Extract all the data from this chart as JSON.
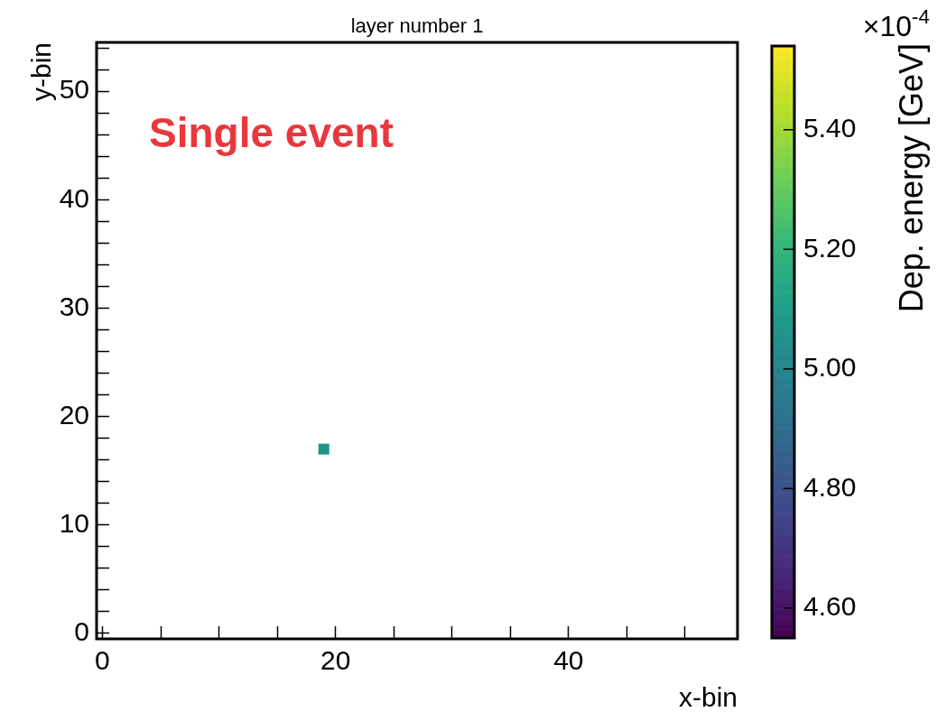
{
  "chart_data": {
    "type": "scatter",
    "title": "layer number 1",
    "xlabel": "x-bin",
    "ylabel": "y-bin",
    "clabel": "Dep. energy [GeV]",
    "annotations": [
      "Single event",
      "×10$^{-4}$"
    ],
    "x": [
      19
    ],
    "values": [
      17
    ],
    "cvalues": [
      5.05
    ],
    "marker": "square",
    "xlim": [
      -0.5,
      54.5
    ],
    "ylim": [
      -0.5,
      54.5
    ],
    "xticks": [
      0,
      {
        "value": 5,
        "label": null
      },
      {
        "value": 10,
        "label": null
      },
      {
        "value": 15,
        "label": null
      },
      20,
      {
        "value": 25,
        "label": null
      },
      {
        "value": 30,
        "label": null
      },
      {
        "value": 35,
        "label": null
      },
      40,
      {
        "value": 45,
        "label": null
      },
      {
        "value": 50,
        "label": null
      }
    ],
    "yticks": [
      0,
      {
        "value": 2,
        "label": null
      },
      {
        "value": 4,
        "label": null
      },
      {
        "value": 6,
        "label": null
      },
      {
        "value": 8,
        "label": null
      },
      10,
      {
        "value": 12,
        "label": null
      },
      {
        "value": 14,
        "label": null
      },
      {
        "value": 16,
        "label": null
      },
      {
        "value": 18,
        "label": null
      },
      20,
      {
        "value": 22,
        "label": null
      },
      {
        "value": 24,
        "label": null
      },
      {
        "value": 26,
        "label": null
      },
      {
        "value": 28,
        "label": null
      },
      30,
      {
        "value": 32,
        "label": null
      },
      {
        "value": 34,
        "label": null
      },
      {
        "value": 36,
        "label": null
      },
      {
        "value": 38,
        "label": null
      },
      40,
      {
        "value": 42,
        "label": null
      },
      {
        "value": 44,
        "label": null
      },
      {
        "value": 46,
        "label": null
      },
      {
        "value": 48,
        "label": null
      },
      50,
      {
        "value": 52,
        "label": null
      },
      {
        "value": 54,
        "label": null
      }
    ],
    "clim": [
      4.55,
      5.54
    ],
    "cticks": [
      {
        "value": 4.6,
        "label": "4.60"
      },
      {
        "value": 4.8,
        "label": "4.80"
      },
      {
        "value": 5,
        "label": "5.00"
      },
      {
        "value": 5.2,
        "label": "5.20"
      },
      {
        "value": 5.4,
        "label": "5.40"
      }
    ],
    "grid": false,
    "legend": false
  }
}
